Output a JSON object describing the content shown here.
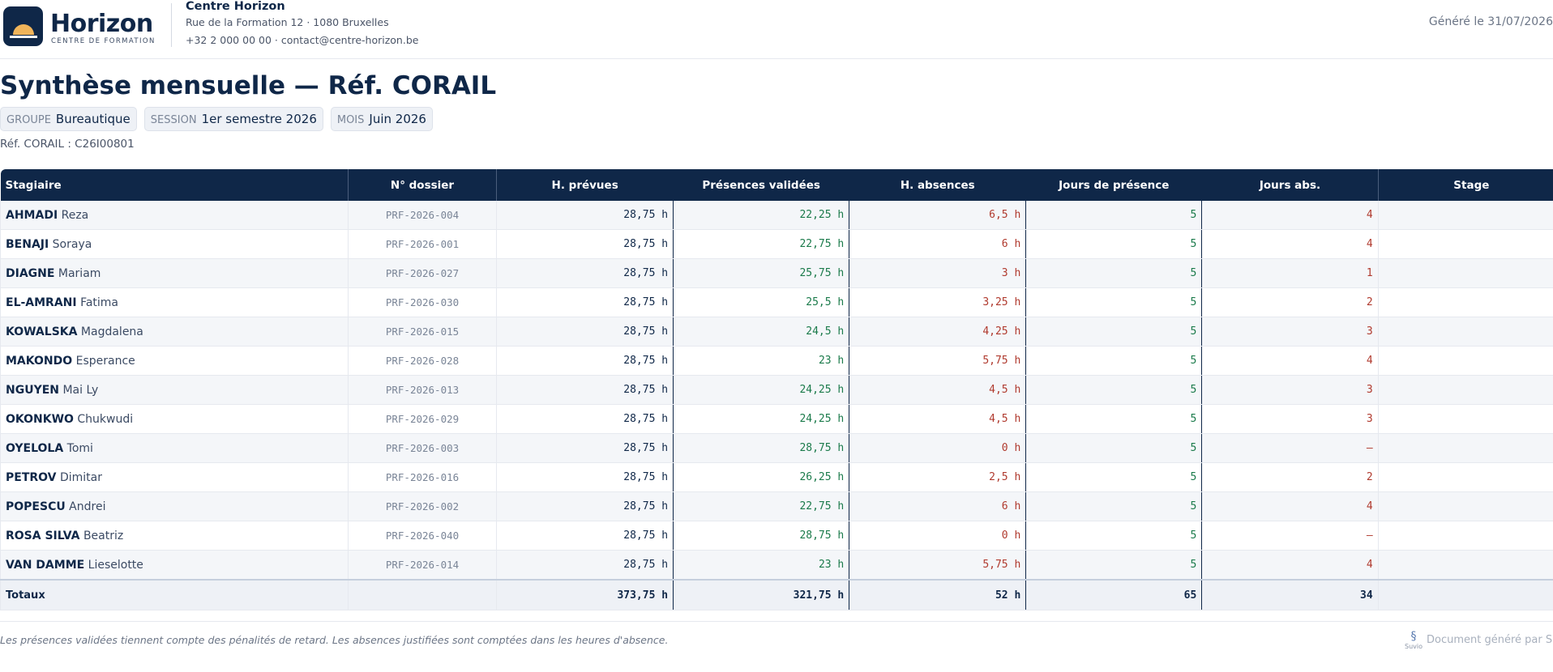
{
  "header": {
    "logo_name": "Horizon",
    "logo_sub": "CENTRE DE FORMATION",
    "org_name": "Centre Horizon",
    "address": "Rue de la Formation 12 · 1080 Bruxelles",
    "contact": "+32 2 000 00 00 · contact@centre-horizon.be",
    "generated": "Généré le 31/07/2026"
  },
  "title": "Synthèse mensuelle — Réf. CORAIL",
  "badges": [
    {
      "label": "GROUPE",
      "value": "Bureautique"
    },
    {
      "label": "SESSION",
      "value": "1er semestre 2026"
    },
    {
      "label": "MOIS",
      "value": "Juin 2026"
    }
  ],
  "ref": "Réf. CORAIL : C26I00801",
  "table": {
    "columns": [
      "Stagiaire",
      "N° dossier",
      "H. prévues",
      "Présences validées",
      "H. absences",
      "Jours de présence",
      "Jours abs.",
      "Stage"
    ],
    "rows": [
      [
        "AHMADI",
        "Reza",
        "PRF-2026-004",
        "28,75 h",
        "22,25 h",
        "6,5 h",
        "5",
        "4",
        "–"
      ],
      [
        "BENAJI",
        "Soraya",
        "PRF-2026-001",
        "28,75 h",
        "22,75 h",
        "6 h",
        "5",
        "4",
        "–"
      ],
      [
        "DIAGNE",
        "Mariam",
        "PRF-2026-027",
        "28,75 h",
        "25,75 h",
        "3 h",
        "5",
        "1",
        "–"
      ],
      [
        "EL-AMRANI",
        "Fatima",
        "PRF-2026-030",
        "28,75 h",
        "25,5 h",
        "3,25 h",
        "5",
        "2",
        "–"
      ],
      [
        "KOWALSKA",
        "Magdalena",
        "PRF-2026-015",
        "28,75 h",
        "24,5 h",
        "4,25 h",
        "5",
        "3",
        "–"
      ],
      [
        "MAKONDO",
        "Esperance",
        "PRF-2026-028",
        "28,75 h",
        "23 h",
        "5,75 h",
        "5",
        "4",
        "–"
      ],
      [
        "NGUYEN",
        "Mai Ly",
        "PRF-2026-013",
        "28,75 h",
        "24,25 h",
        "4,5 h",
        "5",
        "3",
        "–"
      ],
      [
        "OKONKWO",
        "Chukwudi",
        "PRF-2026-029",
        "28,75 h",
        "24,25 h",
        "4,5 h",
        "5",
        "3",
        "–"
      ],
      [
        "OYELOLA",
        "Tomi",
        "PRF-2026-003",
        "28,75 h",
        "28,75 h",
        "0 h",
        "5",
        "–",
        "–"
      ],
      [
        "PETROV",
        "Dimitar",
        "PRF-2026-016",
        "28,75 h",
        "26,25 h",
        "2,5 h",
        "5",
        "2",
        "–"
      ],
      [
        "POPESCU",
        "Andrei",
        "PRF-2026-002",
        "28,75 h",
        "22,75 h",
        "6 h",
        "5",
        "4",
        "–"
      ],
      [
        "ROSA SILVA",
        "Beatriz",
        "PRF-2026-040",
        "28,75 h",
        "28,75 h",
        "0 h",
        "5",
        "–",
        "–"
      ],
      [
        "VAN DAMME",
        "Lieselotte",
        "PRF-2026-014",
        "28,75 h",
        "23 h",
        "5,75 h",
        "5",
        "4",
        "–"
      ]
    ],
    "totals": {
      "label": "Totaux",
      "prevues": "373,75 h",
      "presences": "321,75 h",
      "absences": "52 h",
      "jours": "65",
      "jours_abs": "34",
      "stage": "–"
    }
  },
  "footer": {
    "note": "Les présences validées tiennent compte des pénalités de retard. Les absences justifiées sont comptées dans les heures d'absence.",
    "brand_logo": "Suvio",
    "brand": "Document généré par Suvio"
  }
}
